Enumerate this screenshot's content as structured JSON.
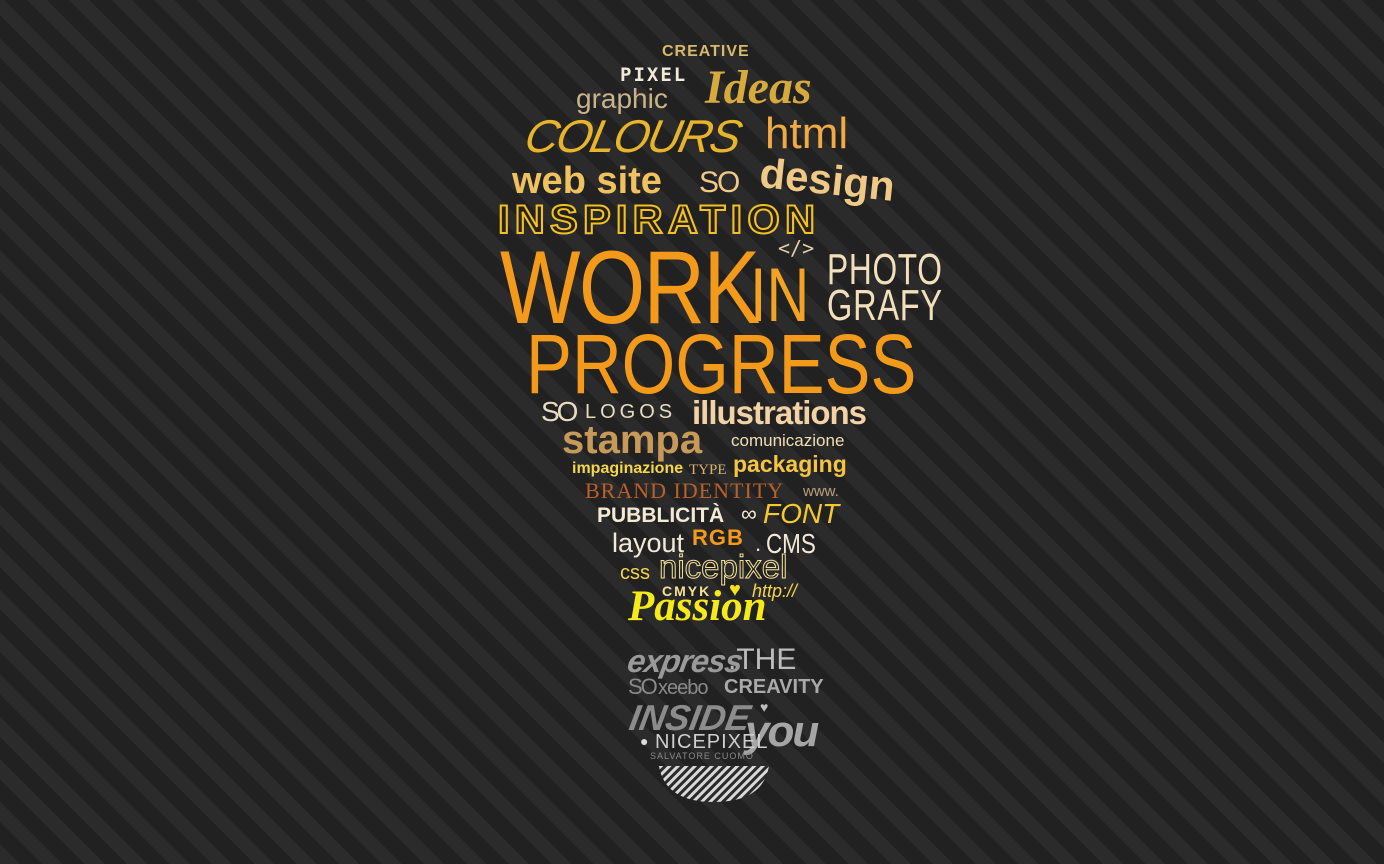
{
  "words": {
    "creative": "CREATIVE",
    "pixel": "PIXEL",
    "graphic": "graphic",
    "ideas": "Ideas",
    "colours": "COLOURS",
    "html": "html",
    "web_site": "web site",
    "so1": "SO",
    "design": "design",
    "inspiration": "INSPIRATION",
    "code": "</>",
    "work": "WORK",
    "in": "IN",
    "photo": "PHOTO",
    "grafy": "GRAFY",
    "progress": "PROGRESS",
    "so2": "SO",
    "logos": "LOGOS",
    "illustrations": "illustrations",
    "stampa": "stampa",
    "comunicazione": "comunicazione",
    "impaginazione": "impaginazione",
    "type": "TYPE",
    "packaging": "packaging",
    "brand_identity": "BRAND IDENTITY",
    "www": "www.",
    "pubblicita": "PUBBLICITÀ",
    "infinity": "∞",
    "font": "FONT",
    "layout": "layout",
    "rgb": "RGB",
    "dot": ".",
    "cms": "CMS",
    "css": "css",
    "nicepixel1": "nicepixel",
    "cmyk": "CMYK",
    "heart1": "♥",
    "http": "http://",
    "passion": "Passion",
    "express": "express",
    "the": ".THE",
    "so3": "SO",
    "xeebo": "xeebo",
    "creavity": "CREAVITY",
    "inside": "INSIDE",
    "heart2": "♥",
    "you": "you",
    "nicepixel2": "NICEPIXEL",
    "salvatore": "SALVATORE CUOMO"
  },
  "colors": {
    "background": "#252525",
    "gold": "#e8b52a",
    "orange": "#f39a1a",
    "yellow": "#f5e21a",
    "cream": "#f0dfb5",
    "tan": "#c9a067",
    "brown": "#b8612a",
    "grey": "#9a9a9a"
  }
}
